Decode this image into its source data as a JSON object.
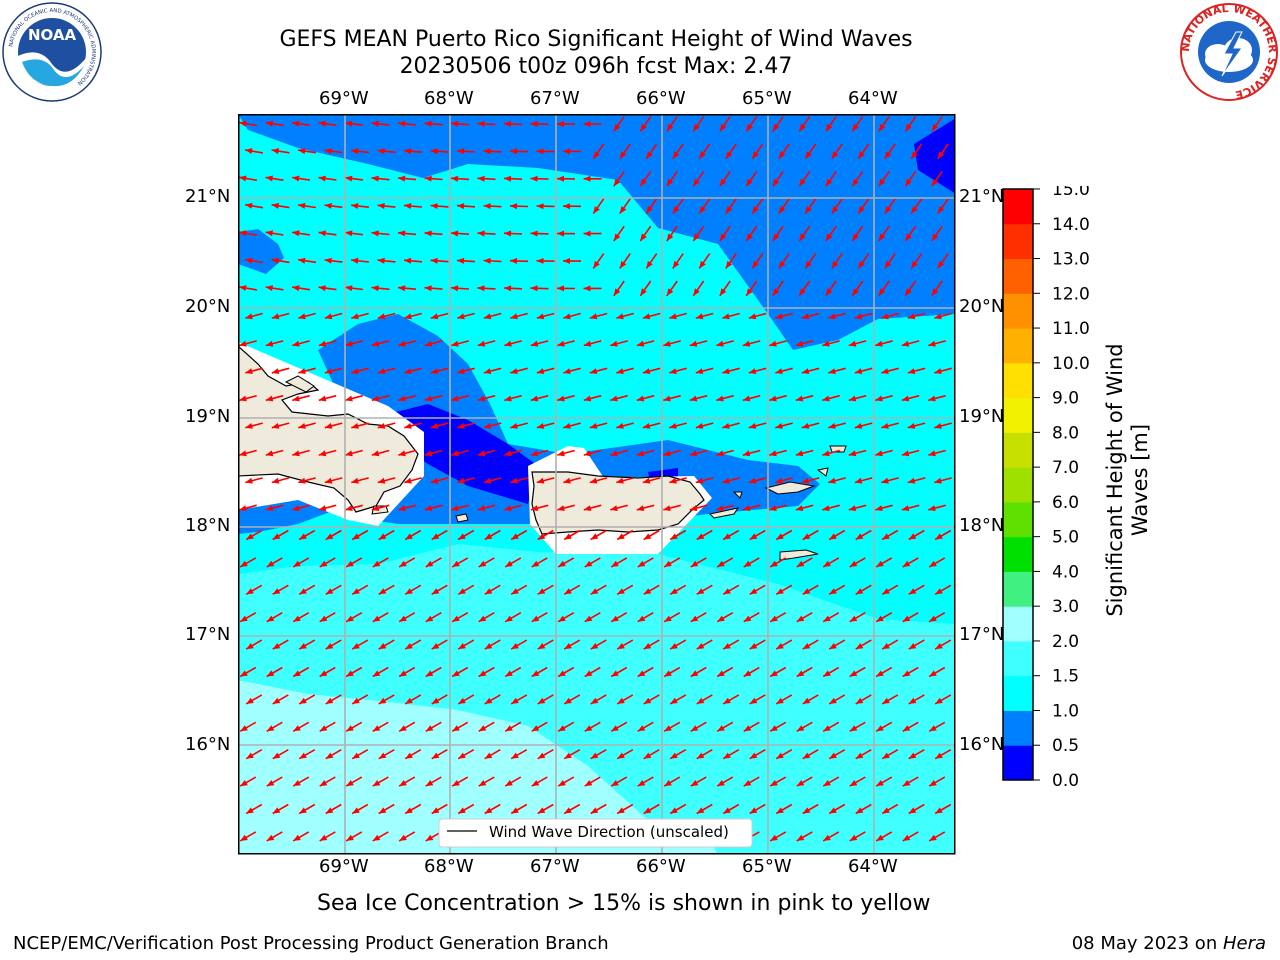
{
  "header": {
    "title_line1": "GEFS MEAN Puerto Rico Significant Height of Wind Waves",
    "title_line2": "20230506 t00z 096h fcst   Max: 2.47"
  },
  "logos": {
    "left": {
      "name": "NOAA",
      "ring_text": "NATIONAL OCEANIC AND ATMOSPHERIC ADMINISTRATION",
      "bottom_text": "U.S. DEPARTMENT OF COMMERCE"
    },
    "right": {
      "ring_text": "NATIONAL WEATHER SERVICE"
    }
  },
  "map": {
    "lon_labels": [
      "69°W",
      "68°W",
      "67°W",
      "66°W",
      "65°W",
      "64°W"
    ],
    "lat_labels": [
      "21°N",
      "20°N",
      "19°N",
      "18°N",
      "17°N",
      "16°N"
    ],
    "legend_label": "Wind Wave Direction (unscaled)",
    "arrow_color": "#ff0000",
    "land_color": "#efebdc"
  },
  "colorbar": {
    "label": "Significant Height of Wind Waves [m]",
    "label_line1": "Significant Height of Wind",
    "label_line2": "Waves [m]",
    "levels": [
      "0.0",
      "0.5",
      "1.0",
      "1.5",
      "2.0",
      "3.0",
      "4.0",
      "5.0",
      "6.0",
      "7.0",
      "8.0",
      "9.0",
      "10.0",
      "11.0",
      "12.0",
      "13.0",
      "14.0",
      "15.0"
    ],
    "colors": [
      "#0000ff",
      "#0080ff",
      "#00ffff",
      "#40ffff",
      "#a0ffff",
      "#40f080",
      "#00e000",
      "#60e000",
      "#a0e000",
      "#c8e000",
      "#f0f000",
      "#ffe000",
      "#ffb000",
      "#ff9000",
      "#ff6000",
      "#ff3000",
      "#ff0000"
    ]
  },
  "notes": {
    "sea_ice": "Sea Ice Concentration > 15% is shown in pink to yellow",
    "footer_left": "NCEP/EMC/Verification Post Processing Product Generation Branch",
    "footer_right_prefix": "08 May 2023 on ",
    "footer_right_host": "Hera"
  }
}
